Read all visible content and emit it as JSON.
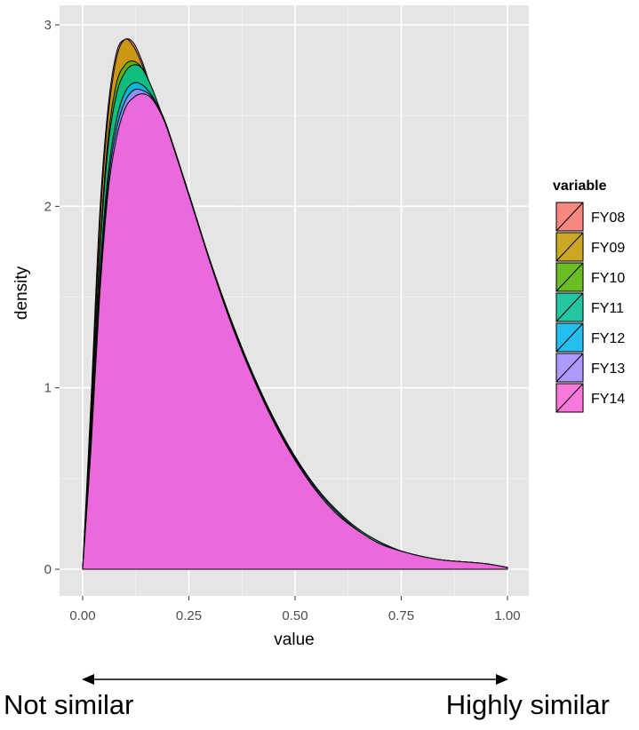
{
  "chart_data": {
    "type": "area",
    "title": "",
    "xlabel": "value",
    "ylabel": "density",
    "xlim": [
      0,
      1
    ],
    "ylim": [
      0,
      3
    ],
    "x_ticks": [
      "0.00",
      "0.25",
      "0.50",
      "0.75",
      "1.00"
    ],
    "y_ticks": [
      "0",
      "1",
      "2",
      "3"
    ],
    "grid": true,
    "legend": {
      "title": "variable",
      "placement": "right"
    },
    "x": [
      0,
      0.02,
      0.04,
      0.06,
      0.08,
      0.1,
      0.12,
      0.14,
      0.16,
      0.18,
      0.2,
      0.25,
      0.3,
      0.35,
      0.4,
      0.45,
      0.5,
      0.55,
      0.6,
      0.65,
      0.7,
      0.75,
      0.8,
      0.85,
      0.9,
      0.95,
      1.0
    ],
    "series": [
      {
        "name": "FY08",
        "color": "#F8766D",
        "values": [
          0,
          0.95,
          1.95,
          2.55,
          2.85,
          2.92,
          2.9,
          2.8,
          2.66,
          2.52,
          2.4,
          2.06,
          1.7,
          1.37,
          1.08,
          0.83,
          0.62,
          0.45,
          0.32,
          0.22,
          0.15,
          0.1,
          0.07,
          0.05,
          0.04,
          0.03,
          0.01
        ]
      },
      {
        "name": "FY09",
        "color": "#C49A00",
        "values": [
          0,
          0.9,
          1.88,
          2.5,
          2.82,
          2.92,
          2.88,
          2.78,
          2.65,
          2.52,
          2.4,
          2.06,
          1.7,
          1.37,
          1.08,
          0.83,
          0.62,
          0.45,
          0.32,
          0.22,
          0.15,
          0.1,
          0.07,
          0.05,
          0.04,
          0.03,
          0.01
        ]
      },
      {
        "name": "FY10",
        "color": "#53B400",
        "values": [
          0,
          0.82,
          1.75,
          2.38,
          2.68,
          2.78,
          2.8,
          2.76,
          2.66,
          2.53,
          2.41,
          2.06,
          1.7,
          1.37,
          1.08,
          0.83,
          0.62,
          0.45,
          0.32,
          0.22,
          0.15,
          0.1,
          0.07,
          0.05,
          0.04,
          0.03,
          0.01
        ]
      },
      {
        "name": "FY11",
        "color": "#00C094",
        "values": [
          0,
          0.8,
          1.72,
          2.33,
          2.62,
          2.74,
          2.78,
          2.76,
          2.67,
          2.55,
          2.42,
          2.06,
          1.7,
          1.37,
          1.08,
          0.83,
          0.62,
          0.45,
          0.32,
          0.22,
          0.15,
          0.1,
          0.07,
          0.05,
          0.04,
          0.03,
          0.01
        ]
      },
      {
        "name": "FY12",
        "color": "#00B6EB",
        "values": [
          0,
          0.72,
          1.6,
          2.18,
          2.48,
          2.63,
          2.68,
          2.67,
          2.62,
          2.54,
          2.43,
          2.07,
          1.7,
          1.36,
          1.07,
          0.82,
          0.61,
          0.44,
          0.31,
          0.21,
          0.14,
          0.1,
          0.07,
          0.05,
          0.04,
          0.03,
          0.01
        ]
      },
      {
        "name": "FY13",
        "color": "#A58AFF",
        "values": [
          0,
          0.7,
          1.55,
          2.13,
          2.43,
          2.58,
          2.64,
          2.64,
          2.61,
          2.54,
          2.43,
          2.07,
          1.7,
          1.36,
          1.07,
          0.82,
          0.61,
          0.44,
          0.31,
          0.21,
          0.14,
          0.1,
          0.07,
          0.05,
          0.04,
          0.03,
          0.01
        ]
      },
      {
        "name": "FY14",
        "color": "#FB61D7",
        "values": [
          0,
          0.68,
          1.5,
          2.08,
          2.38,
          2.54,
          2.6,
          2.62,
          2.6,
          2.53,
          2.42,
          2.06,
          1.69,
          1.35,
          1.06,
          0.81,
          0.6,
          0.43,
          0.3,
          0.21,
          0.14,
          0.1,
          0.07,
          0.05,
          0.04,
          0.03,
          0.01
        ]
      }
    ]
  },
  "annotations": {
    "left_label": "Not similar",
    "right_label": "Highly similar"
  }
}
